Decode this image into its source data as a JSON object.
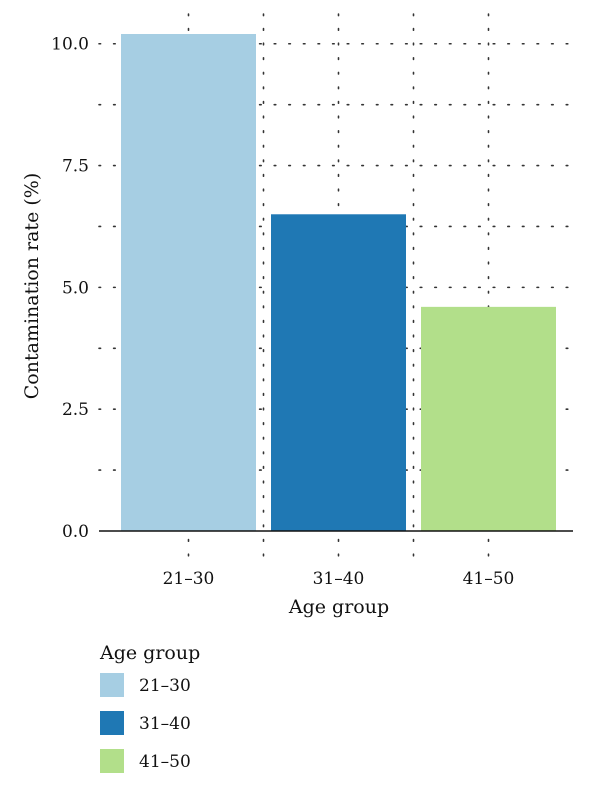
{
  "chart_data": {
    "type": "bar",
    "categories": [
      "21–30",
      "31–40",
      "41–50"
    ],
    "values": [
      10.2,
      6.5,
      4.6
    ],
    "colors": [
      "#a6cee3",
      "#1f78b4",
      "#b2df8a"
    ],
    "title": "",
    "xlabel": "Age group",
    "ylabel": "Contamination rate (%)",
    "ylim": [
      0,
      10.2
    ],
    "yticks": [
      0,
      2.5,
      5,
      7.5,
      10
    ],
    "ytick_labels": [
      "0.0",
      "2.5",
      "5.0",
      "7.5",
      "10.0"
    ],
    "grid": true,
    "legend": {
      "title": "Age group",
      "placement": "bottom-left",
      "entries": [
        "21–30",
        "31–40",
        "41–50"
      ]
    }
  }
}
